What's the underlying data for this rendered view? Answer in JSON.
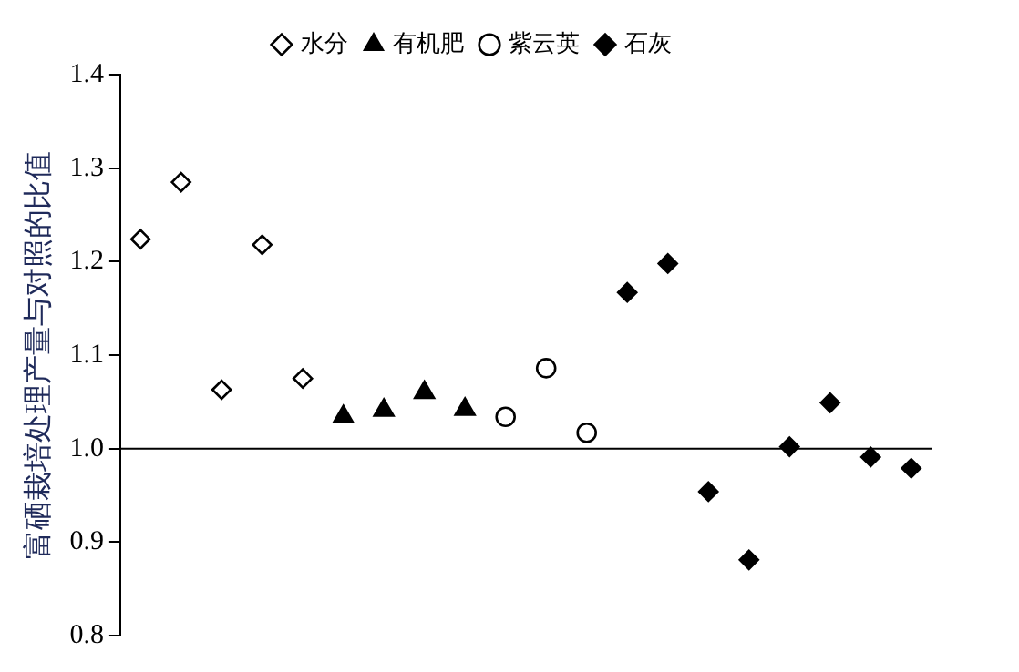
{
  "chart_data": {
    "type": "scatter",
    "ylabel": "富硒栽培处理产量与对照的比值",
    "categories": [
      null,
      null,
      null,
      null,
      null,
      null,
      null,
      null,
      null,
      null,
      null,
      null,
      null,
      null,
      null,
      null,
      null,
      null,
      null,
      null
    ],
    "ylim": [
      0.8,
      1.4
    ],
    "yticks": [
      {
        "value": 0.8,
        "label": "0.8"
      },
      {
        "value": 0.9,
        "label": "0.9"
      },
      {
        "value": 1.0,
        "label": "1.0"
      },
      {
        "value": 1.1,
        "label": "1.1"
      },
      {
        "value": 1.2,
        "label": "1.2"
      },
      {
        "value": 1.3,
        "label": "1.3"
      },
      {
        "value": 1.4,
        "label": "1.4"
      }
    ],
    "tick_labels": "y",
    "grid": false,
    "legend": "top",
    "ref_lines": [
      {
        "axis": "y",
        "value": 1.0,
        "color": "#000000"
      }
    ],
    "series": [
      {
        "name": "水分",
        "color": "#000000",
        "marker": "diamond",
        "values": [
          1.224,
          1.285,
          1.063,
          1.218,
          1.075,
          null,
          null,
          null,
          null,
          null,
          null,
          null,
          null,
          null,
          null,
          null,
          null,
          null,
          null,
          null
        ]
      },
      {
        "name": "有机肥",
        "color": "#000000",
        "marker": "triangle",
        "values": [
          null,
          null,
          null,
          null,
          null,
          1.034,
          1.041,
          1.06,
          1.042,
          null,
          null,
          null,
          null,
          null,
          null,
          null,
          null,
          null,
          null,
          null
        ]
      },
      {
        "name": "紫云英",
        "color": "#000000",
        "marker": "circle",
        "values": [
          null,
          null,
          null,
          null,
          null,
          null,
          null,
          null,
          null,
          1.034,
          1.086,
          1.017,
          null,
          null,
          null,
          null,
          null,
          null,
          null,
          null
        ]
      },
      {
        "name": "石灰",
        "color": "#000000",
        "marker": "diamond",
        "values": [
          null,
          null,
          null,
          null,
          null,
          null,
          null,
          null,
          null,
          null,
          null,
          null,
          1.167,
          1.198,
          0.954,
          0.881,
          1.002,
          1.049,
          0.991,
          0.979
        ]
      }
    ]
  }
}
